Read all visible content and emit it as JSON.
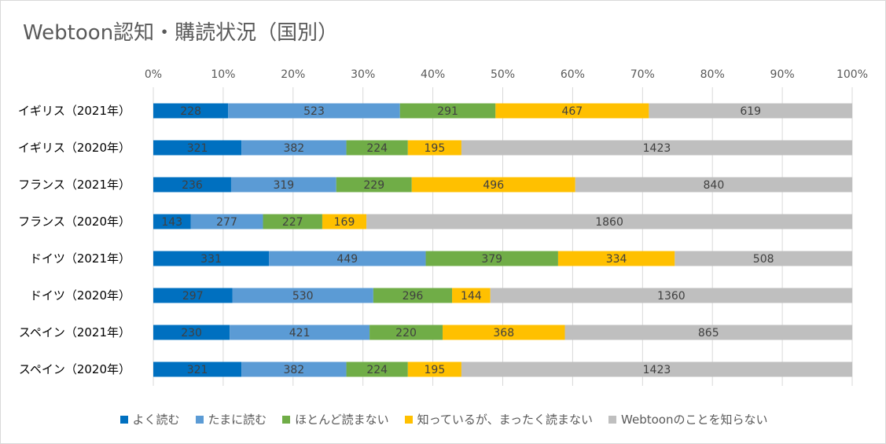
{
  "chart_data": {
    "type": "bar",
    "orientation": "horizontal",
    "stacked": "percent",
    "title": "Webtoon認知・購読状況（国別）",
    "categories": [
      "イギリス（2021年）",
      "イギリス（2020年）",
      "フランス（2021年）",
      "フランス（2020年）",
      "ドイツ（2021年）",
      "ドイツ（2020年）",
      "スペイン（2021年）",
      "スペイン（2020年）"
    ],
    "x_ticks": [
      "0%",
      "10%",
      "20%",
      "30%",
      "40%",
      "50%",
      "60%",
      "70%",
      "80%",
      "90%",
      "100%"
    ],
    "xlim": [
      0,
      100
    ],
    "series": [
      {
        "name": "よく読む",
        "color": "#0070c0",
        "values": [
          228,
          321,
          236,
          143,
          331,
          297,
          230,
          321
        ]
      },
      {
        "name": "たまに読む",
        "color": "#5b9bd5",
        "values": [
          523,
          382,
          319,
          277,
          449,
          530,
          421,
          382
        ]
      },
      {
        "name": "ほとんど読まない",
        "color": "#70ad47",
        "values": [
          291,
          224,
          229,
          227,
          379,
          296,
          220,
          224
        ]
      },
      {
        "name": "知っているが、まったく読まない",
        "color": "#ffc000",
        "values": [
          467,
          195,
          496,
          169,
          334,
          144,
          368,
          195
        ]
      },
      {
        "name": "Webtoonのことを知らない",
        "color": "#bfbfbf",
        "values": [
          619,
          1423,
          840,
          1860,
          508,
          1360,
          865,
          1423
        ]
      }
    ],
    "legend_position": "bottom",
    "grid": true
  }
}
